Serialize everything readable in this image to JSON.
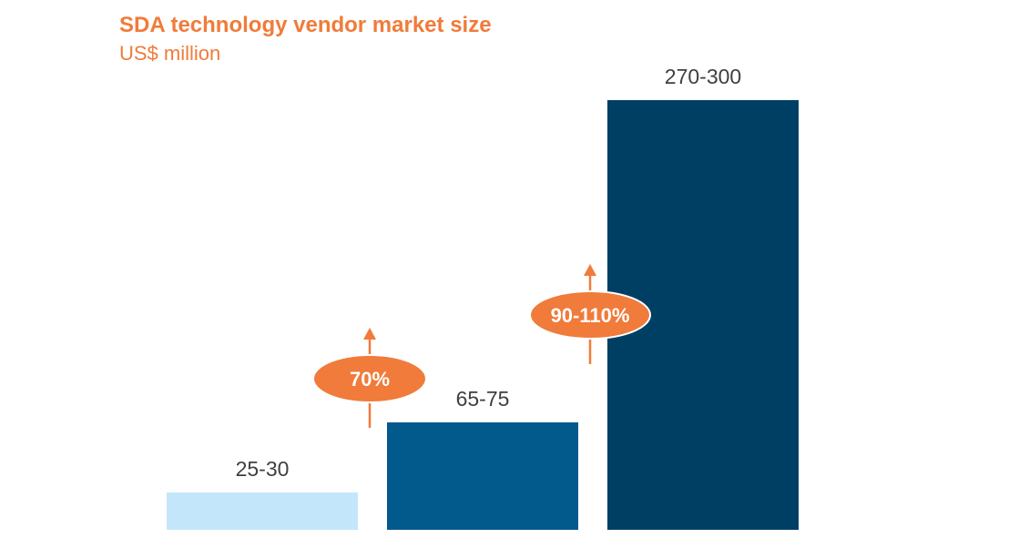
{
  "chart_data": {
    "type": "bar",
    "title": "SDA technology vendor market size",
    "subtitle": "US$ million",
    "categories": [
      "",
      "",
      ""
    ],
    "value_ranges": [
      [
        25,
        30
      ],
      [
        65,
        75
      ],
      [
        270,
        300
      ]
    ],
    "values": [
      27.5,
      70,
      285
    ],
    "data_labels": [
      "25-30",
      "65-75",
      "270-300"
    ],
    "ylim": [
      0,
      300
    ],
    "grid": false,
    "colors": [
      "#c3e6fb",
      "#02598b",
      "#003f64"
    ],
    "growth_annotations": [
      {
        "label": "70%",
        "from_bar": 0,
        "to_bar": 1
      },
      {
        "label": "90-110%",
        "from_bar": 1,
        "to_bar": 2
      }
    ],
    "annotation_color": "#f07b3a"
  }
}
